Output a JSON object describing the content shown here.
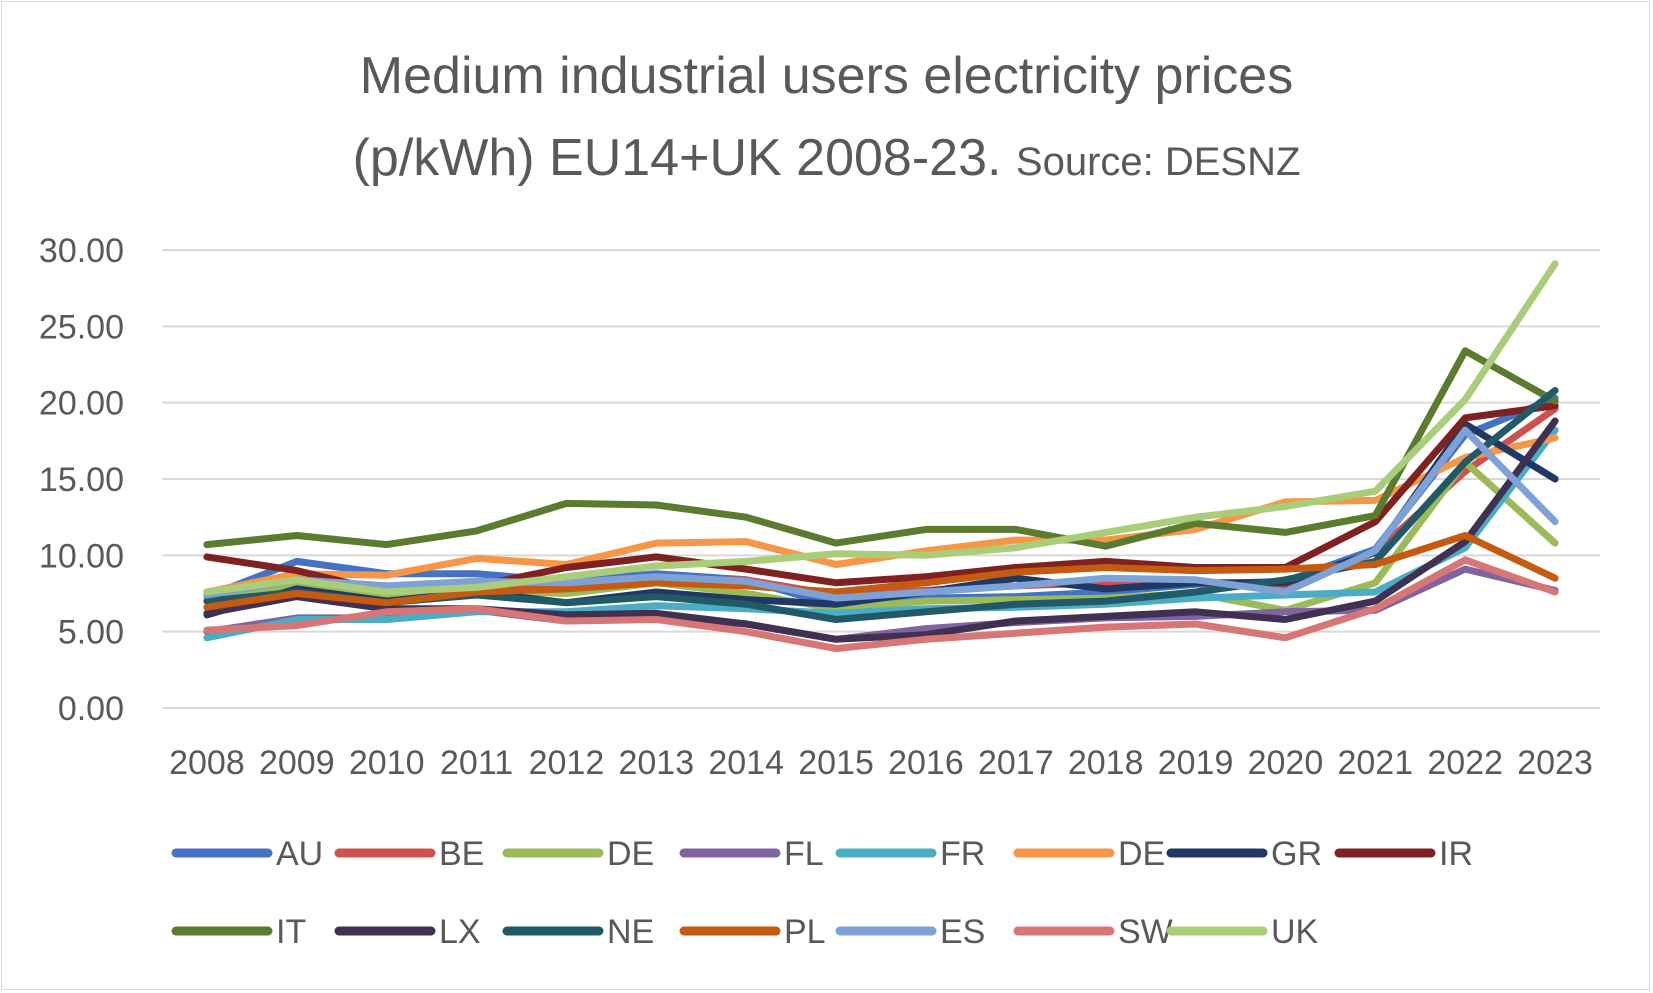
{
  "chart_data": {
    "type": "line",
    "title_line1": "Medium industrial users electricity prices",
    "title_line2_main": "(p/kWh) EU14+UK 2008-23.",
    "title_line2_source": "Source: DESNZ",
    "xlabel": "",
    "ylabel": "",
    "ylim": [
      0,
      30
    ],
    "yticks": [
      "0.00",
      "5.00",
      "10.00",
      "15.00",
      "20.00",
      "25.00",
      "30.00"
    ],
    "grid": true,
    "legend_position": "bottom",
    "categories": [
      "2008",
      "2009",
      "2010",
      "2011",
      "2012",
      "2013",
      "2014",
      "2015",
      "2016",
      "2017",
      "2018",
      "2019",
      "2020",
      "2021",
      "2022",
      "2023"
    ],
    "series": [
      {
        "name": "AU",
        "color": "#4472c4",
        "values": [
          7.3,
          9.6,
          8.8,
          8.8,
          8.3,
          8.8,
          8.4,
          6.7,
          7.2,
          7.3,
          7.6,
          8.1,
          8.3,
          10.4,
          17.9,
          20.3
        ]
      },
      {
        "name": "BE",
        "color": "#d0504f",
        "values": [
          7.6,
          8.4,
          8.0,
          8.0,
          8.0,
          8.3,
          8.4,
          7.4,
          7.7,
          8.0,
          8.2,
          8.2,
          8.0,
          10.2,
          15.5,
          19.6
        ]
      },
      {
        "name": "DE",
        "color": "#9bbb59",
        "values": [
          7.3,
          8.0,
          7.2,
          7.7,
          7.5,
          8.2,
          7.5,
          6.5,
          7.0,
          7.1,
          7.2,
          7.5,
          6.4,
          8.2,
          16.1,
          10.8
        ]
      },
      {
        "name": "FL",
        "color": "#8064a2",
        "values": [
          5.0,
          5.9,
          5.9,
          6.4,
          5.7,
          5.9,
          5.5,
          4.5,
          5.2,
          5.6,
          5.9,
          6.0,
          6.3,
          6.4,
          9.1,
          7.7
        ]
      },
      {
        "name": "FR",
        "color": "#4bacc6",
        "values": [
          4.6,
          5.8,
          5.8,
          6.3,
          6.3,
          6.7,
          6.5,
          6.2,
          6.5,
          6.6,
          6.8,
          7.2,
          7.4,
          7.6,
          10.5,
          18.2
        ]
      },
      {
        "name": "DE",
        "color": "#f79646",
        "values": [
          7.6,
          8.8,
          8.7,
          9.8,
          9.4,
          10.8,
          10.9,
          9.4,
          10.3,
          11.0,
          11.0,
          11.7,
          13.5,
          13.6,
          16.4,
          17.7
        ]
      },
      {
        "name": "GR",
        "color": "#1f3864",
        "values": [
          6.1,
          7.8,
          7.0,
          7.6,
          6.9,
          7.6,
          7.1,
          6.8,
          7.6,
          8.5,
          7.8,
          8.2,
          8.2,
          10.2,
          18.6,
          15.0
        ]
      },
      {
        "name": "IR",
        "color": "#7f2121",
        "values": [
          9.9,
          9.0,
          7.6,
          8.0,
          9.2,
          9.9,
          9.1,
          8.2,
          8.6,
          9.2,
          9.6,
          9.2,
          9.2,
          12.2,
          19.0,
          19.8
        ]
      },
      {
        "name": "IT",
        "color": "#5b7b2f",
        "values": [
          10.7,
          11.3,
          10.7,
          11.6,
          13.4,
          13.3,
          12.5,
          10.8,
          11.7,
          11.7,
          10.6,
          12.1,
          11.5,
          12.6,
          23.4,
          20.1
        ]
      },
      {
        "name": "LX",
        "color": "#403152",
        "values": [
          6.2,
          7.3,
          6.5,
          6.5,
          6.1,
          6.2,
          5.5,
          4.5,
          4.8,
          5.7,
          6.0,
          6.3,
          5.8,
          7.0,
          10.9,
          18.8
        ]
      },
      {
        "name": "NE",
        "color": "#215967",
        "values": [
          7.0,
          7.6,
          6.9,
          7.4,
          6.9,
          7.3,
          6.8,
          5.8,
          6.3,
          6.8,
          7.0,
          7.6,
          8.4,
          9.6,
          16.1,
          20.8
        ]
      },
      {
        "name": "PL",
        "color": "#c55a11",
        "values": [
          6.6,
          7.5,
          6.9,
          7.6,
          7.8,
          8.2,
          8.0,
          7.6,
          8.2,
          8.9,
          9.2,
          9.0,
          9.1,
          9.4,
          11.3,
          8.5
        ]
      },
      {
        "name": "ES",
        "color": "#7ea1d6",
        "values": [
          7.4,
          8.4,
          8.0,
          8.3,
          8.2,
          8.6,
          8.3,
          7.2,
          7.6,
          8.0,
          8.5,
          8.4,
          7.6,
          10.3,
          18.2,
          12.2
        ]
      },
      {
        "name": "SW",
        "color": "#d87575",
        "values": [
          5.1,
          5.4,
          6.3,
          6.5,
          5.7,
          5.8,
          5.0,
          3.9,
          4.5,
          4.9,
          5.3,
          5.5,
          4.6,
          6.5,
          9.7,
          7.6
        ]
      },
      {
        "name": "UK",
        "color": "#a9cd79",
        "values": [
          7.6,
          8.4,
          7.6,
          7.9,
          8.6,
          9.3,
          9.6,
          10.1,
          10.0,
          10.5,
          11.5,
          12.5,
          13.2,
          14.2,
          20.2,
          29.1
        ]
      }
    ]
  }
}
